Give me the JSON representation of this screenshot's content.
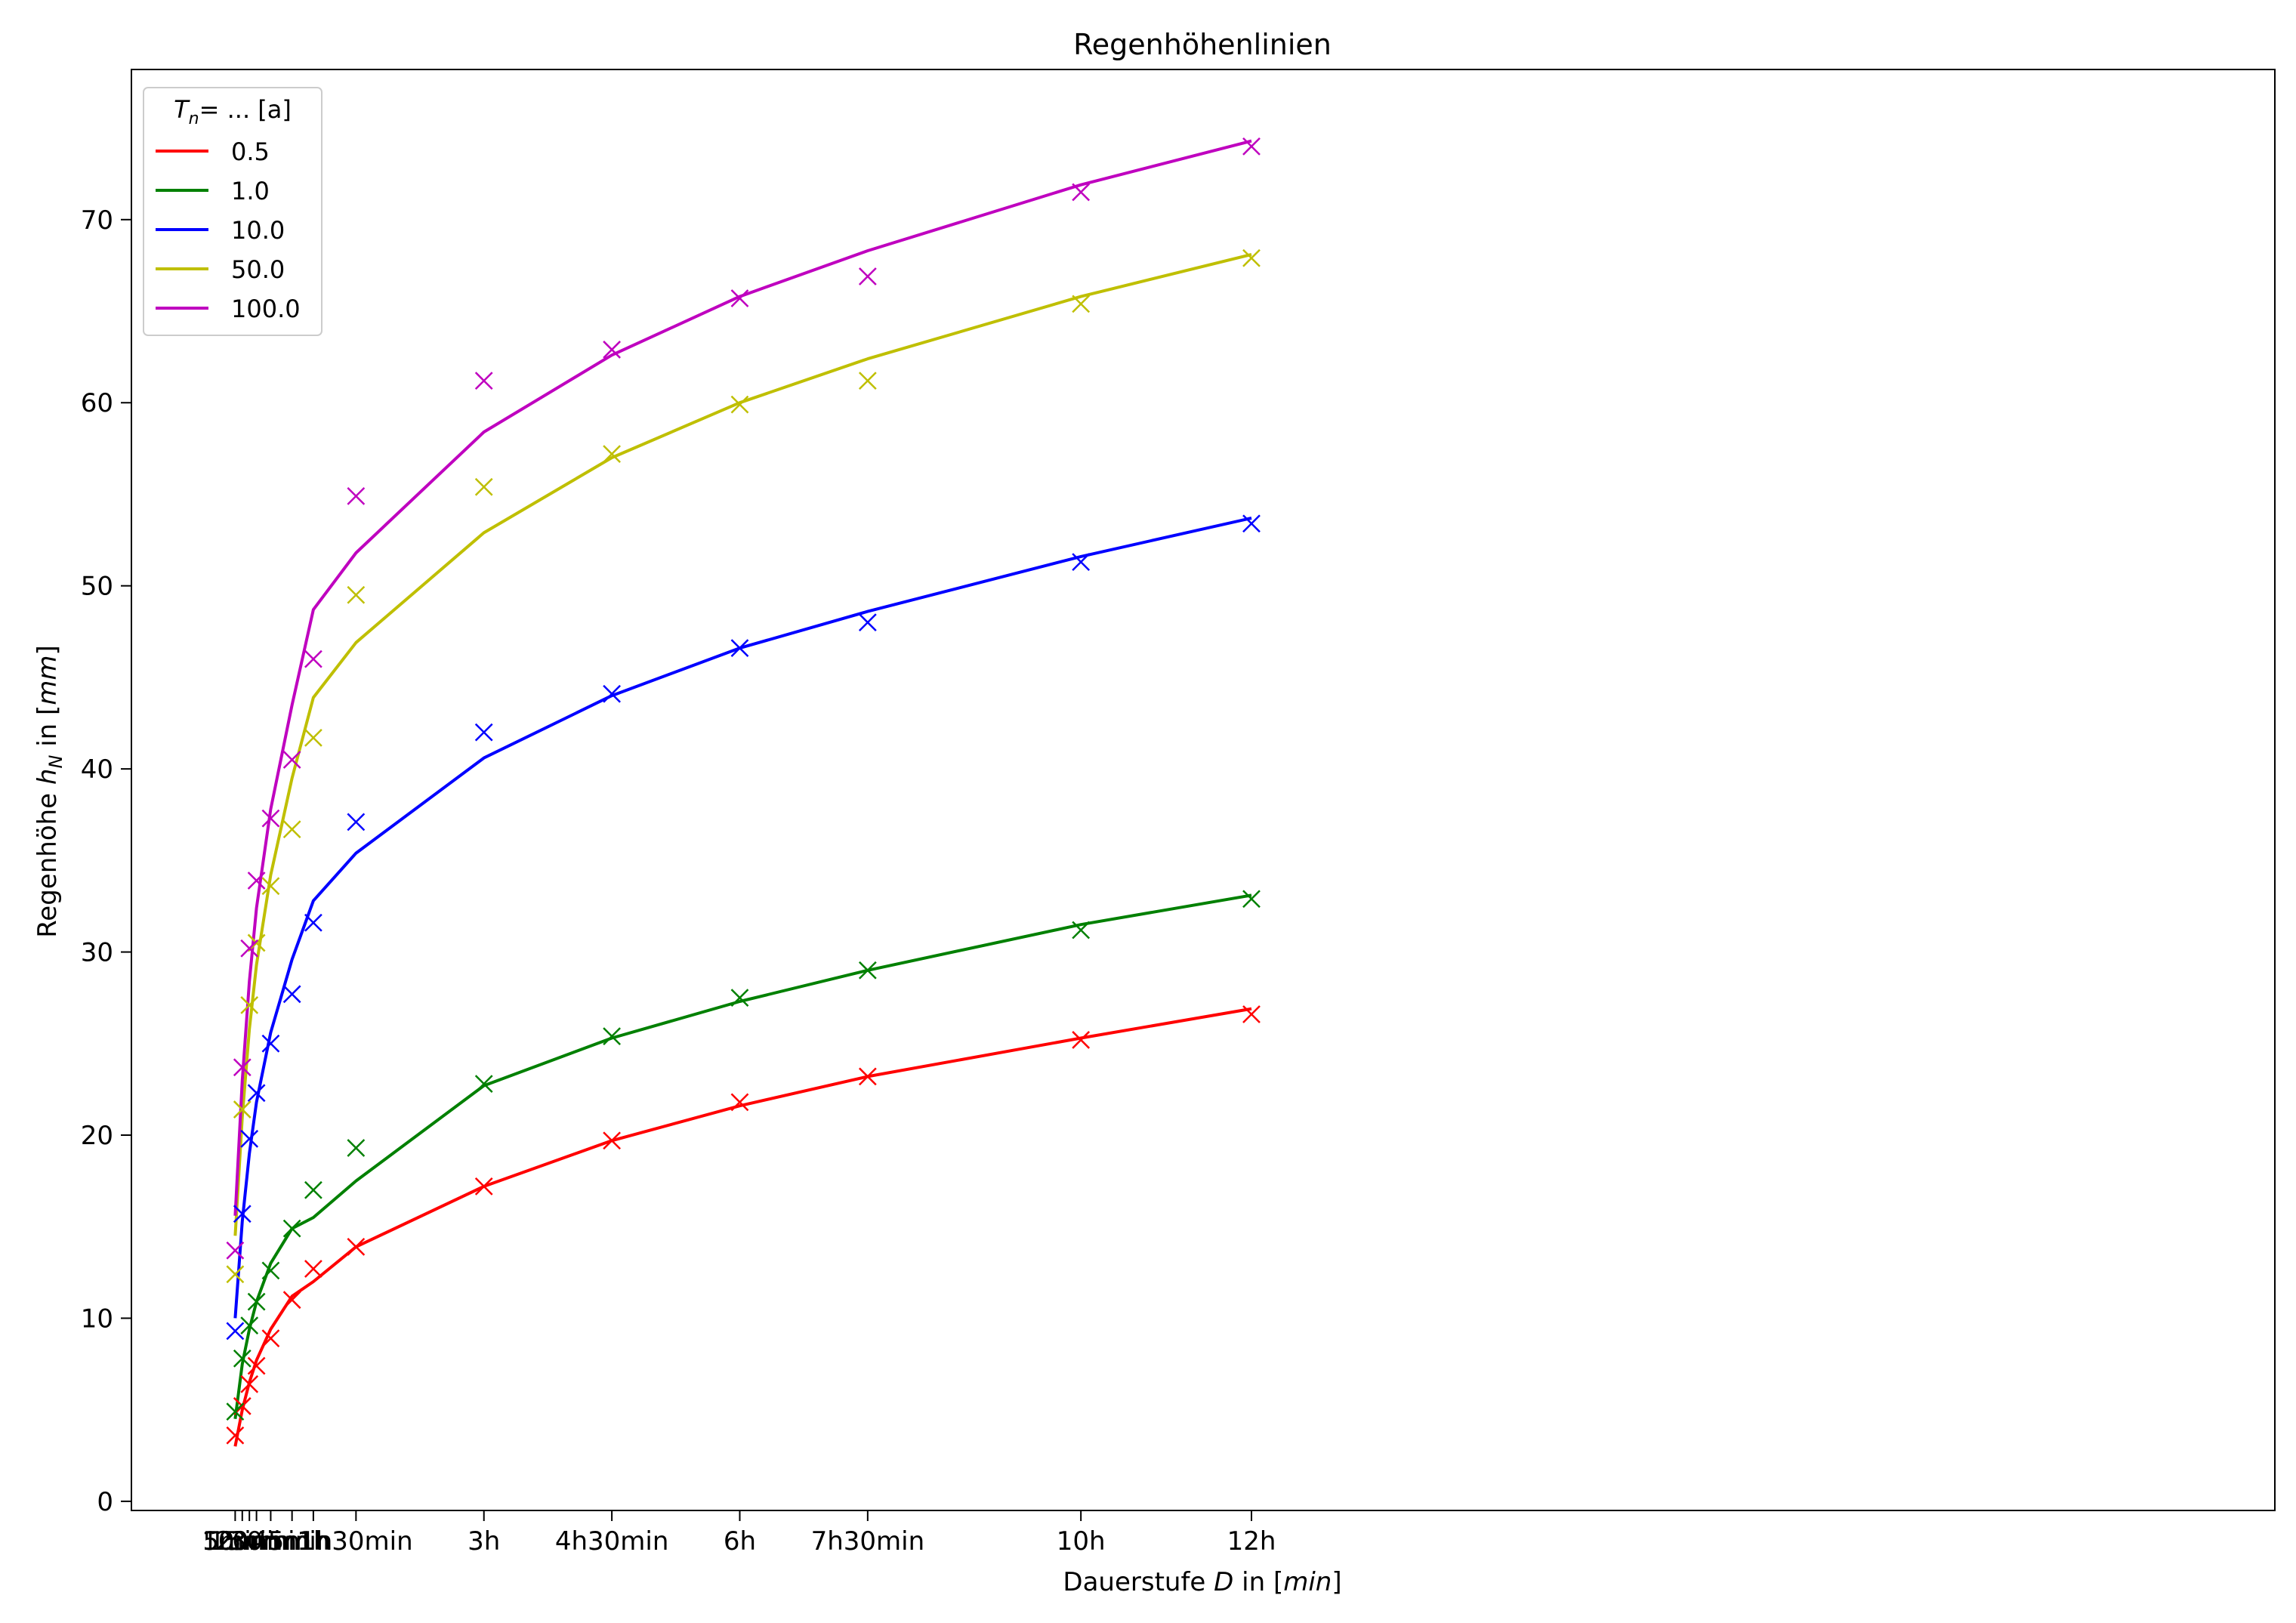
{
  "chart_data": {
    "type": "line",
    "title": "Regenhöhenlinien",
    "xlabel": "Dauerstufe D in [min]",
    "ylabel": "Regenhöhe h_N in [mm]",
    "xlim": [
      -68,
      1440
    ],
    "ylim": [
      -0.5,
      78.2
    ],
    "x_tick_values": [
      5,
      10,
      15,
      20,
      30,
      45,
      60,
      90,
      180,
      270,
      360,
      450,
      600,
      720
    ],
    "x_tick_labels": [
      "5min",
      "10min",
      "15min",
      "20min",
      "30min",
      "45min",
      "1h",
      "1h30min",
      "3h",
      "4h30min",
      "6h",
      "7h30min",
      "10h",
      "12h"
    ],
    "y_ticks": [
      0,
      10,
      20,
      30,
      40,
      50,
      60,
      70
    ],
    "legend": {
      "title": "T_n= ... [a]",
      "position": "top-left"
    },
    "x": [
      5,
      10,
      15,
      20,
      30,
      45,
      60,
      90,
      180,
      270,
      360,
      450,
      600,
      720
    ],
    "series": [
      {
        "name": "0.5",
        "color": "#ff0000",
        "observed": [
          3.6,
          5.2,
          6.4,
          7.4,
          8.9,
          11.0,
          12.7,
          13.9,
          17.2,
          19.7,
          21.8,
          23.2,
          25.2,
          26.6
        ],
        "fit": [
          3.0,
          5.0,
          6.5,
          7.7,
          9.4,
          11.2,
          12.0,
          13.9,
          17.2,
          19.7,
          21.6,
          23.2,
          25.3,
          26.9
        ]
      },
      {
        "name": "1.0",
        "color": "#008000",
        "observed": [
          4.9,
          7.8,
          9.6,
          10.9,
          12.6,
          14.9,
          17.0,
          19.3,
          22.8,
          25.4,
          27.5,
          29.0,
          31.2,
          32.9
        ],
        "fit": [
          4.5,
          7.5,
          9.4,
          10.9,
          13.0,
          14.9,
          15.5,
          17.5,
          22.7,
          25.3,
          27.3,
          29.0,
          31.5,
          33.1
        ]
      },
      {
        "name": "10.0",
        "color": "#0000ff",
        "observed": [
          9.3,
          15.7,
          19.8,
          22.3,
          25.0,
          27.7,
          31.6,
          37.1,
          42.0,
          44.1,
          46.6,
          48.0,
          51.3,
          53.4
        ],
        "fit": [
          10.0,
          15.3,
          19.0,
          21.8,
          25.6,
          29.6,
          32.8,
          35.4,
          40.6,
          44.0,
          46.6,
          48.6,
          51.6,
          53.7
        ]
      },
      {
        "name": "50.0",
        "color": "#bfbf00",
        "observed": [
          12.4,
          21.4,
          27.1,
          30.5,
          33.6,
          36.7,
          41.7,
          49.5,
          55.4,
          57.2,
          59.9,
          61.2,
          65.4,
          67.9
        ],
        "fit": [
          14.5,
          21.0,
          25.8,
          29.3,
          34.2,
          39.5,
          43.9,
          46.9,
          52.9,
          57.0,
          60.0,
          62.4,
          65.8,
          68.1
        ]
      },
      {
        "name": "100.0",
        "color": "#bf00bf",
        "observed": [
          13.7,
          23.7,
          30.2,
          33.9,
          37.3,
          40.5,
          46.0,
          54.9,
          61.2,
          62.9,
          65.7,
          66.9,
          71.5,
          74.0
        ],
        "fit": [
          15.6,
          23.0,
          28.4,
          32.4,
          37.8,
          43.5,
          48.7,
          51.8,
          58.4,
          62.6,
          65.8,
          68.3,
          71.9,
          74.3
        ]
      }
    ]
  }
}
